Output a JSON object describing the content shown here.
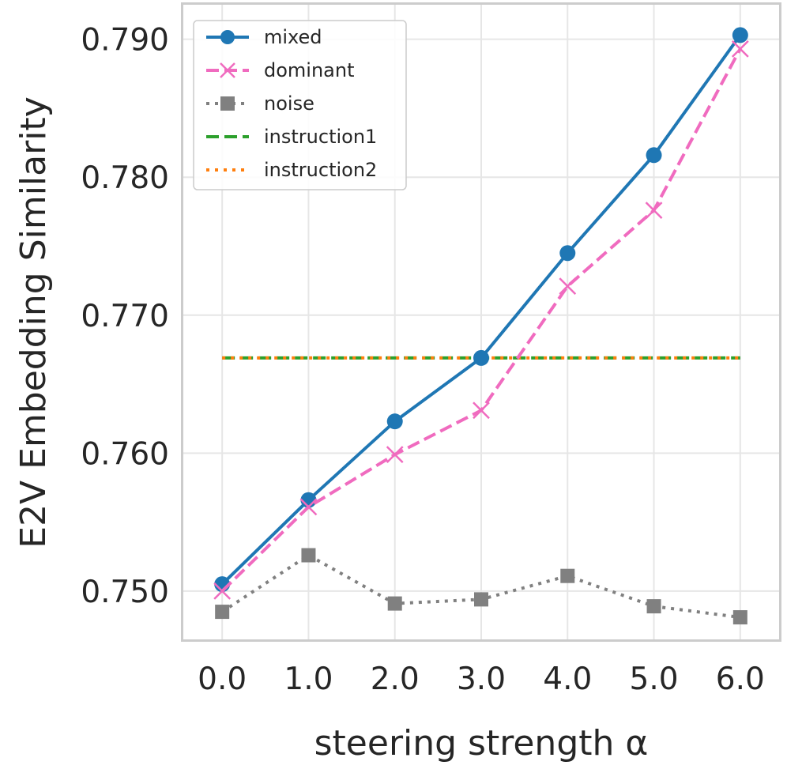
{
  "chart_data": {
    "type": "line",
    "title": "",
    "xlabel": "steering strength α",
    "ylabel": "E2V Embedding Similarity",
    "x": [
      0.0,
      1.0,
      2.0,
      3.0,
      4.0,
      5.0,
      6.0
    ],
    "xticks": [
      "0.0",
      "1.0",
      "2.0",
      "3.0",
      "4.0",
      "5.0",
      "6.0"
    ],
    "yticks": [
      "0.750",
      "0.760",
      "0.770",
      "0.780",
      "0.790"
    ],
    "ytick_values": [
      0.75,
      0.76,
      0.77,
      0.78,
      0.79
    ],
    "xlim": [
      -0.45,
      6.45
    ],
    "ylim": [
      0.7465,
      0.7925
    ],
    "grid": true,
    "legend_position": "top-left",
    "series": [
      {
        "name": "mixed",
        "values": [
          0.7505,
          0.7566,
          0.7623,
          0.7669,
          0.7745,
          0.7816,
          0.7903
        ],
        "color": "#1f77b4",
        "line": "solid",
        "marker": "circle"
      },
      {
        "name": "dominant",
        "values": [
          0.75,
          0.7561,
          0.7599,
          0.7631,
          0.7721,
          0.7776,
          0.7893
        ],
        "color": "#f06bbf",
        "line": "dashed",
        "marker": "x"
      },
      {
        "name": "noise",
        "values": [
          0.7485,
          0.7526,
          0.7491,
          0.7494,
          0.7511,
          0.7489,
          0.7481
        ],
        "color": "#808080",
        "line": "dotted",
        "marker": "square"
      },
      {
        "name": "instruction1",
        "values": [
          0.7669,
          0.7669,
          0.7669,
          0.7669,
          0.7669,
          0.7669,
          0.7669
        ],
        "color": "#2ca02c",
        "line": "dashed",
        "marker": "none"
      },
      {
        "name": "instruction2",
        "values": [
          0.7669,
          0.7669,
          0.7669,
          0.7669,
          0.7669,
          0.7669,
          0.7669
        ],
        "color": "#ff7f0e",
        "line": "dotted",
        "marker": "none"
      }
    ]
  }
}
